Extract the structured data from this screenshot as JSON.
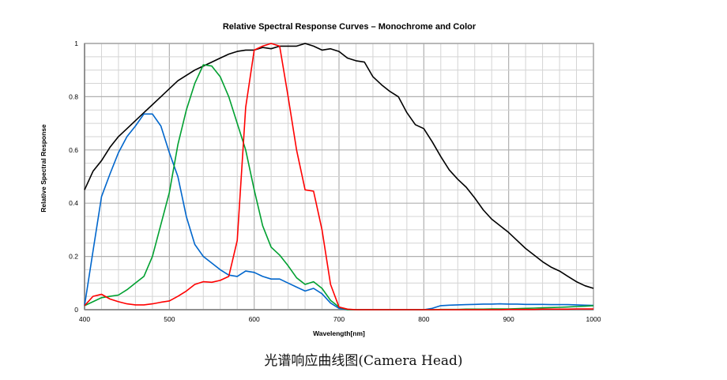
{
  "chart_data": {
    "type": "line",
    "title": "Relative Spectral Response Curves – Monochrome and Color",
    "xlabel": "Wavelength[nm]",
    "ylabel": "Relative Spectral Response",
    "xlim": [
      400,
      1000
    ],
    "ylim": [
      0,
      1
    ],
    "xticks": [
      400,
      500,
      600,
      700,
      800,
      900,
      1000
    ],
    "yticks": [
      0,
      0.2,
      0.4,
      0.6,
      0.8,
      1
    ],
    "ytick_labels": [
      "0",
      "0.2",
      "0.4",
      "0.6",
      "0.8",
      "1"
    ],
    "grid": true,
    "x": [
      400,
      410,
      420,
      430,
      440,
      450,
      460,
      470,
      480,
      490,
      500,
      510,
      520,
      530,
      540,
      550,
      560,
      570,
      580,
      590,
      600,
      610,
      620,
      630,
      640,
      650,
      660,
      670,
      680,
      690,
      700,
      710,
      720,
      730,
      740,
      750,
      760,
      770,
      780,
      790,
      800,
      810,
      820,
      830,
      840,
      850,
      860,
      870,
      880,
      890,
      900,
      910,
      920,
      930,
      940,
      950,
      960,
      970,
      980,
      990,
      1000
    ],
    "series": [
      {
        "color": "#000000",
        "values": [
          0.45,
          0.52,
          0.56,
          0.61,
          0.65,
          0.68,
          0.71,
          0.74,
          0.77,
          0.8,
          0.83,
          0.86,
          0.88,
          0.9,
          0.915,
          0.93,
          0.945,
          0.96,
          0.97,
          0.975,
          0.975,
          0.985,
          0.98,
          0.99,
          0.99,
          0.99,
          1.0,
          0.99,
          0.975,
          0.98,
          0.97,
          0.945,
          0.935,
          0.93,
          0.875,
          0.845,
          0.82,
          0.8,
          0.74,
          0.695,
          0.68,
          0.63,
          0.575,
          0.525,
          0.49,
          0.46,
          0.42,
          0.375,
          0.34,
          0.315,
          0.29,
          0.26,
          0.23,
          0.205,
          0.18,
          0.16,
          0.145,
          0.125,
          0.105,
          0.09,
          0.08
        ]
      },
      {
        "color": "#0066CC",
        "values": [
          0.015,
          0.22,
          0.425,
          0.51,
          0.59,
          0.65,
          0.69,
          0.735,
          0.735,
          0.69,
          0.59,
          0.5,
          0.35,
          0.245,
          0.2,
          0.175,
          0.15,
          0.13,
          0.125,
          0.145,
          0.14,
          0.125,
          0.115,
          0.115,
          0.1,
          0.085,
          0.07,
          0.08,
          0.06,
          0.025,
          0.005,
          0,
          0,
          0,
          0,
          0,
          0,
          0,
          0,
          0,
          0,
          0.005,
          0.015,
          0.017,
          0.018,
          0.019,
          0.02,
          0.021,
          0.021,
          0.022,
          0.021,
          0.021,
          0.02,
          0.02,
          0.02,
          0.019,
          0.019,
          0.019,
          0.018,
          0.017,
          0.016
        ]
      },
      {
        "color": "#00A030",
        "values": [
          0.015,
          0.03,
          0.045,
          0.05,
          0.055,
          0.075,
          0.1,
          0.125,
          0.2,
          0.32,
          0.44,
          0.62,
          0.75,
          0.85,
          0.92,
          0.915,
          0.875,
          0.8,
          0.7,
          0.6,
          0.45,
          0.315,
          0.235,
          0.205,
          0.165,
          0.12,
          0.095,
          0.105,
          0.08,
          0.035,
          0.01,
          0,
          0,
          0,
          0,
          0,
          0,
          0,
          0,
          0,
          0,
          0,
          0.001,
          0.001,
          0.001,
          0.002,
          0.002,
          0.002,
          0.003,
          0.003,
          0.003,
          0.004,
          0.005,
          0.006,
          0.007,
          0.008,
          0.009,
          0.01,
          0.012,
          0.013,
          0.015
        ]
      },
      {
        "color": "#FF0000",
        "values": [
          0.015,
          0.05,
          0.058,
          0.04,
          0.03,
          0.022,
          0.018,
          0.018,
          0.022,
          0.028,
          0.033,
          0.05,
          0.07,
          0.095,
          0.105,
          0.103,
          0.11,
          0.125,
          0.26,
          0.76,
          0.975,
          0.99,
          1.0,
          0.99,
          0.8,
          0.6,
          0.45,
          0.445,
          0.3,
          0.095,
          0.01,
          0.002,
          0,
          0,
          0,
          0,
          0,
          0,
          0,
          0,
          0,
          0,
          0,
          0,
          0,
          0,
          0,
          0,
          0,
          0,
          0.001,
          0.001,
          0.001,
          0.001,
          0.002,
          0.002,
          0.002,
          0.002,
          0.003,
          0.003,
          0.003
        ]
      }
    ]
  },
  "caption": "光谱响应曲线图(Camera Head)"
}
